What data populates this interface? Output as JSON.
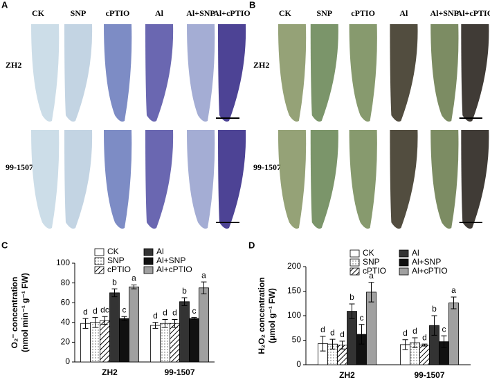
{
  "panels": [
    {
      "label": "A",
      "columns": [
        "CK",
        "SNP",
        "cPTIO",
        "Al",
        "Al+SNP",
        "Al+cPTIO"
      ],
      "rows": [
        "ZH2",
        "99-1507"
      ]
    },
    {
      "label": "B",
      "columns": [
        "CK",
        "SNP",
        "cPTIO",
        "Al",
        "Al+SNP",
        "Al+cPTIO"
      ],
      "rows": [
        "ZH2",
        "99-1507"
      ]
    }
  ],
  "chart_data": [
    {
      "type": "bar",
      "panel": "C",
      "ylabel": [
        "O₂⁻ concentration",
        "(nmol min⁻¹ g⁻¹ FW)"
      ],
      "categories": [
        "ZH2",
        "99-1507"
      ],
      "ylim": [
        0,
        100
      ],
      "yticks": [
        0,
        20,
        40,
        60,
        80,
        100
      ],
      "series": [
        {
          "name": "CK",
          "color": "#ffffff",
          "values": [
            39,
            37
          ],
          "errors": [
            5,
            3
          ],
          "letters": [
            "d",
            "d"
          ]
        },
        {
          "name": "SNP",
          "color": "#ffffff",
          "pattern": "dots",
          "values": [
            40,
            39
          ],
          "errors": [
            5,
            4
          ],
          "letters": [
            "d",
            "d"
          ]
        },
        {
          "name": "cPTIO",
          "color": "#ffffff",
          "pattern": "hatch",
          "values": [
            42,
            39
          ],
          "errors": [
            4,
            4
          ],
          "letters": [
            "dc",
            "d"
          ]
        },
        {
          "name": "Al",
          "color": "#333333",
          "values": [
            70,
            61
          ],
          "errors": [
            4,
            4
          ],
          "letters": [
            "b",
            "b"
          ]
        },
        {
          "name": "Al+SNP",
          "color": "#111111",
          "values": [
            44,
            44
          ],
          "errors": [
            2,
            1
          ],
          "letters": [
            "c",
            "c"
          ]
        },
        {
          "name": "Al+cPTIO",
          "color": "#a0a0a0",
          "values": [
            76,
            75
          ],
          "errors": [
            2,
            6
          ],
          "letters": [
            "a",
            "a"
          ]
        }
      ]
    },
    {
      "type": "bar",
      "panel": "D",
      "ylabel": [
        "H₂O₂ concentration",
        "(μmol g⁻¹ FW)"
      ],
      "categories": [
        "ZH2",
        "99-1507"
      ],
      "ylim": [
        0,
        200
      ],
      "yticks": [
        0,
        50,
        100,
        150,
        200
      ],
      "series": [
        {
          "name": "CK",
          "color": "#ffffff",
          "values": [
            43,
            41
          ],
          "errors": [
            15,
            10
          ],
          "letters": [
            "d",
            "d"
          ]
        },
        {
          "name": "SNP",
          "color": "#ffffff",
          "pattern": "dots",
          "values": [
            42,
            45
          ],
          "errors": [
            10,
            10
          ],
          "letters": [
            "d",
            "d"
          ]
        },
        {
          "name": "cPTIO",
          "color": "#ffffff",
          "pattern": "hatch",
          "values": [
            40,
            40
          ],
          "errors": [
            8,
            2
          ],
          "letters": [
            "d",
            "d"
          ]
        },
        {
          "name": "Al",
          "color": "#333333",
          "values": [
            109,
            80
          ],
          "errors": [
            15,
            20
          ],
          "letters": [
            "b",
            "b"
          ]
        },
        {
          "name": "Al+SNP",
          "color": "#111111",
          "values": [
            62,
            47
          ],
          "errors": [
            20,
            12
          ],
          "letters": [
            "c",
            "c"
          ]
        },
        {
          "name": "Al+cPTIO",
          "color": "#a0a0a0",
          "values": [
            148,
            126
          ],
          "errors": [
            20,
            12
          ],
          "letters": [
            "a",
            "a"
          ]
        }
      ]
    }
  ]
}
